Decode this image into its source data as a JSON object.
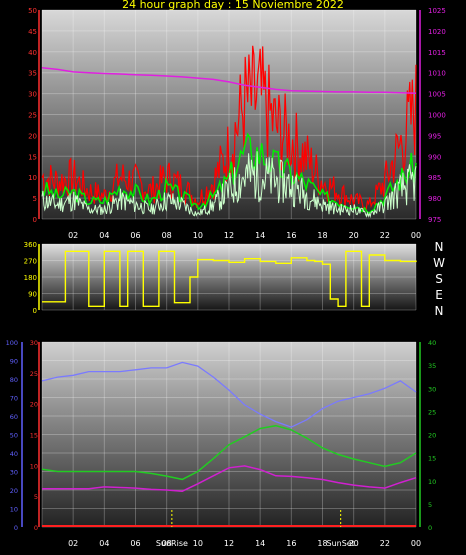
{
  "title": "24 hour graph day : 15 Noviembre 2022",
  "x_ticks": [
    "02",
    "04",
    "06",
    "08",
    "10",
    "12",
    "14",
    "16",
    "18",
    "20",
    "22",
    "00"
  ],
  "direction_labels": [
    "N",
    "W",
    "S",
    "E",
    "N"
  ],
  "sun_labels": [
    "SunRise",
    "SunSet"
  ],
  "colors": {
    "wind": "#ff0000",
    "wind_avg": "#00ee00",
    "wind_light": "#ccffcc",
    "pressure": "#e020e0",
    "direction": "#ffff00",
    "humidity": "#7a7aff",
    "dewpoint": "#d020d0",
    "temp": "#22cc22",
    "rain": "#ff2020",
    "axis_red": "#ff3030",
    "axis_magenta": "#e020e0",
    "axis_yellow": "#ffff00",
    "axis_blue": "#6060ff",
    "axis_green": "#22cc22"
  },
  "chart_data": [
    {
      "type": "line",
      "title": "24 hour graph day : 15 Noviembre 2022",
      "x": [
        "00",
        "01",
        "02",
        "03",
        "04",
        "05",
        "06",
        "07",
        "08",
        "09",
        "10",
        "11",
        "12",
        "13",
        "14",
        "15",
        "16",
        "17",
        "18",
        "19",
        "20",
        "21",
        "22",
        "23",
        "24"
      ],
      "ylim_left": [
        0,
        50
      ],
      "ylim_right": [
        975,
        1025
      ],
      "left_ticks": [
        0,
        5,
        10,
        15,
        20,
        25,
        30,
        35,
        40,
        45,
        50
      ],
      "right_ticks": [
        975,
        980,
        985,
        990,
        995,
        1000,
        1005,
        1010,
        1015,
        1020,
        1025
      ],
      "series": [
        {
          "values": [
            9,
            8,
            9,
            6,
            5,
            9,
            8,
            6,
            9,
            7,
            4,
            8,
            15,
            25,
            26,
            20,
            17,
            13,
            8,
            6,
            4,
            3,
            8,
            16,
            24
          ]
        },
        {
          "values": [
            7,
            5,
            6,
            4,
            4,
            7,
            6,
            4,
            7,
            5,
            3,
            5,
            9,
            15,
            15,
            12,
            10,
            8,
            5,
            4,
            3,
            2,
            5,
            9,
            12
          ]
        },
        {
          "values": [
            4,
            3,
            4,
            2,
            2,
            4,
            3,
            2,
            4,
            3,
            1,
            3,
            6,
            9,
            9,
            8,
            7,
            5,
            3,
            2,
            2,
            1,
            3,
            6,
            8
          ]
        },
        {
          "values": [
            1011.2,
            1010.8,
            1010.2,
            1010.0,
            1009.8,
            1009.7,
            1009.5,
            1009.4,
            1009.2,
            1009.0,
            1008.7,
            1008.4,
            1007.8,
            1007.0,
            1006.5,
            1006.0,
            1005.7,
            1005.6,
            1005.5,
            1005.4,
            1005.4,
            1005.3,
            1005.3,
            1005.2,
            1005.1
          ]
        }
      ]
    },
    {
      "type": "line",
      "ylim": [
        0,
        360
      ],
      "y_ticks": [
        0,
        90,
        180,
        270,
        360
      ],
      "x": [
        0,
        1,
        1.5,
        2.5,
        3,
        3.5,
        4,
        4.5,
        5,
        5.5,
        6,
        6.5,
        7,
        7.5,
        8,
        8.5,
        9,
        9.5,
        10,
        11,
        12,
        13,
        14,
        15,
        16,
        17,
        17.5,
        18,
        18.5,
        19,
        19.5,
        20,
        20.5,
        21,
        22,
        23,
        24
      ],
      "series": [
        {
          "values": [
            45,
            45,
            320,
            320,
            20,
            20,
            320,
            320,
            20,
            320,
            320,
            20,
            20,
            320,
            320,
            40,
            40,
            180,
            275,
            270,
            260,
            280,
            265,
            255,
            285,
            270,
            265,
            250,
            60,
            20,
            320,
            320,
            20,
            300,
            270,
            265,
            270
          ]
        }
      ]
    },
    {
      "type": "line",
      "x": [
        "00",
        "01",
        "02",
        "03",
        "04",
        "05",
        "06",
        "07",
        "08",
        "09",
        "10",
        "11",
        "12",
        "13",
        "14",
        "15",
        "16",
        "17",
        "18",
        "19",
        "20",
        "21",
        "22",
        "23",
        "24"
      ],
      "humidity_axis": [
        0,
        100
      ],
      "humidity_ticks": [
        0,
        10,
        20,
        30,
        40,
        50,
        60,
        70,
        80,
        90,
        100
      ],
      "left_axis": [
        0,
        30
      ],
      "left_ticks": [
        0,
        5,
        10,
        15,
        20,
        25,
        30
      ],
      "right_axis": [
        0,
        40
      ],
      "right_ticks": [
        0,
        5,
        10,
        15,
        20,
        25,
        30,
        35,
        40
      ],
      "sunrise": "08:20",
      "sunset": "19:10",
      "series": [
        {
          "values": [
            79,
            81,
            82,
            84,
            84,
            84,
            85,
            86,
            86,
            89,
            87,
            81,
            74,
            66,
            61,
            57,
            54,
            58,
            64,
            68,
            70,
            72,
            75,
            79,
            73
          ]
        },
        {
          "values": [
            6.2,
            6.2,
            6.2,
            6.2,
            6.5,
            6.4,
            6.3,
            6.1,
            6.0,
            5.8,
            7.0,
            8.3,
            9.6,
            9.9,
            9.3,
            8.3,
            8.2,
            8.0,
            7.7,
            7.2,
            6.8,
            6.5,
            6.3,
            7.2,
            8.0
          ]
        },
        {
          "values": [
            12.5,
            12.0,
            12.0,
            12.0,
            12.0,
            12.0,
            12.0,
            11.6,
            11.0,
            10.3,
            12.0,
            14.8,
            17.8,
            19.5,
            21.3,
            21.9,
            21.0,
            19.2,
            17.1,
            15.7,
            14.7,
            13.9,
            13.1,
            13.9,
            16.0
          ]
        },
        {
          "values": [
            0,
            0,
            0,
            0,
            0,
            0,
            0,
            0,
            0,
            0,
            0,
            0,
            0,
            0,
            0,
            0,
            0,
            0,
            0,
            0,
            0,
            0,
            0,
            0,
            0
          ]
        }
      ]
    }
  ]
}
